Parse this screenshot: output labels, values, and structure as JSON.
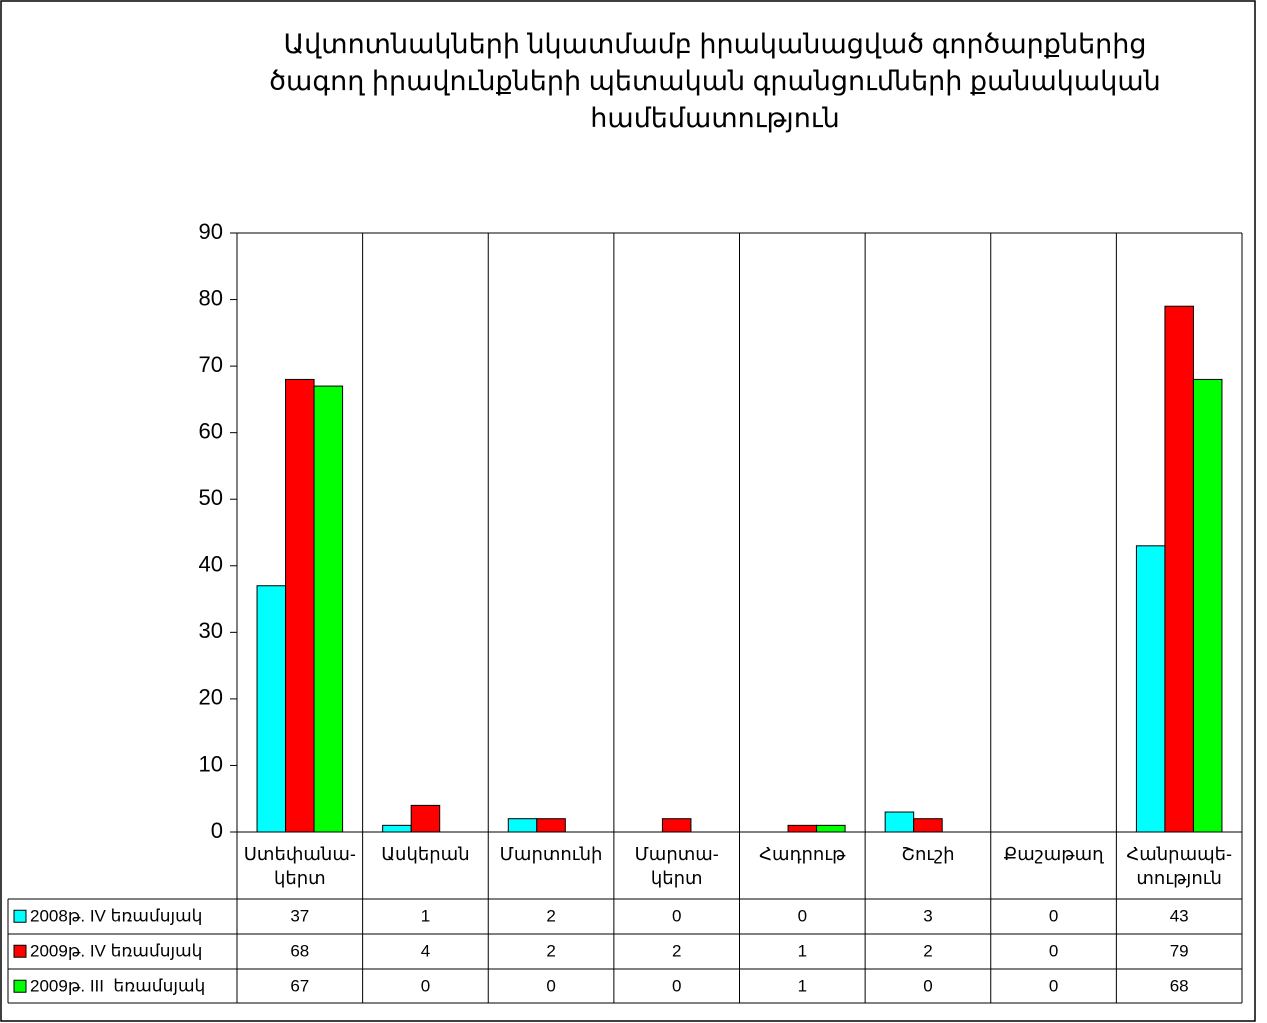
{
  "chart_data": {
    "type": "bar",
    "title": "Ավտոտնակների նկատմամբ իրականացված գործարքներից\nծագող իրավունքների պետական գրանցումների քանակական\nհամեմատություն",
    "categories": [
      "Ստեփանա-\nկերտ",
      "Ասկերան",
      "Մարտունի",
      "Մարտա-\nկերտ",
      "Հադրութ",
      "Շուշի",
      "Քաշաթաղ",
      "Հանրապե-\nտություն"
    ],
    "series": [
      {
        "name": "2008թ. IV եռամսյակ",
        "color": "#00ffff",
        "values": [
          37,
          1,
          2,
          0,
          0,
          3,
          0,
          43
        ]
      },
      {
        "name": "2009թ. IV եռամսյակ",
        "color": "#ff0000",
        "values": [
          68,
          4,
          2,
          2,
          1,
          2,
          0,
          79
        ]
      },
      {
        "name": "2009թ. III  եռամսյակ",
        "color": "#00ff00",
        "values": [
          67,
          0,
          0,
          0,
          1,
          0,
          0,
          68
        ]
      }
    ],
    "ylim": [
      0,
      90
    ],
    "yticks": [
      0,
      10,
      20,
      30,
      40,
      50,
      60,
      70,
      80,
      90
    ],
    "grid": false,
    "data_table": true
  }
}
